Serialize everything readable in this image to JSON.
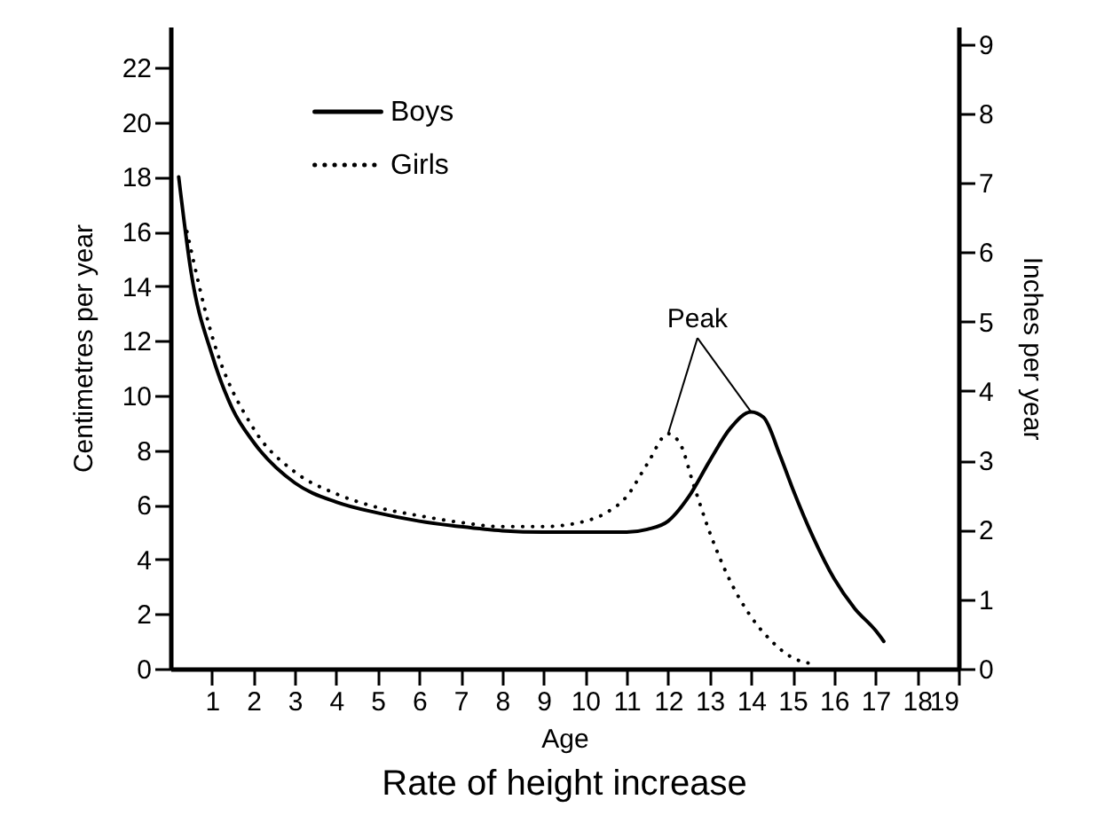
{
  "chart_data": {
    "type": "line",
    "title": "Rate of height increase",
    "xlabel": "Age",
    "ylabel": "Centimetres per year",
    "y2label": "Inches per year",
    "annotations": [
      {
        "text": "Peak",
        "x": 14,
        "y": 9.4
      }
    ],
    "xlim": [
      0,
      19
    ],
    "xticks": [
      1,
      2,
      3,
      4,
      5,
      6,
      7,
      8,
      9,
      10,
      11,
      12,
      13,
      14,
      15,
      16,
      17,
      18,
      19
    ],
    "ylim": [
      0,
      23.5
    ],
    "yticks": [
      0,
      2,
      4,
      6,
      8,
      10,
      12,
      14,
      16,
      18,
      20,
      22
    ],
    "y2lim": [
      0,
      9.25
    ],
    "y2ticks": [
      0,
      1,
      2,
      3,
      4,
      5,
      6,
      7,
      8,
      9
    ],
    "legend": "top left",
    "grid": false,
    "series": [
      {
        "name": "Boys",
        "color": "#000000",
        "line_style": "solid",
        "x": [
          0.2,
          0.5,
          1,
          1.5,
          2,
          3,
          4,
          5,
          6,
          7,
          8,
          9,
          10,
          11,
          11.5,
          12,
          12.5,
          13,
          13.5,
          14,
          14.3,
          14.7,
          15,
          15.5,
          16,
          16.5,
          17,
          17.2
        ],
        "values": [
          18,
          14.5,
          11.5,
          9.5,
          8.3,
          6.8,
          6.1,
          5.7,
          5.4,
          5.2,
          5.05,
          5,
          5,
          5,
          5.1,
          5.4,
          6.3,
          7.6,
          8.8,
          9.4,
          9.2,
          7.8,
          6.6,
          4.8,
          3.3,
          2.2,
          1.4,
          1
        ]
      },
      {
        "name": "Girls",
        "color": "#000000",
        "line_style": "dotted",
        "x": [
          0.4,
          1,
          2,
          3,
          4,
          5,
          6,
          7,
          8,
          9,
          10,
          10.5,
          11,
          11.5,
          12,
          12.3,
          12.6,
          13,
          13.5,
          14,
          14.5,
          15,
          15.4
        ],
        "values": [
          16,
          12.2,
          8.8,
          7.2,
          6.4,
          5.9,
          5.6,
          5.35,
          5.2,
          5.2,
          5.4,
          5.7,
          6.3,
          7.5,
          8.6,
          8.2,
          6.8,
          5,
          3.2,
          1.9,
          1,
          0.4,
          0.2
        ]
      }
    ]
  }
}
